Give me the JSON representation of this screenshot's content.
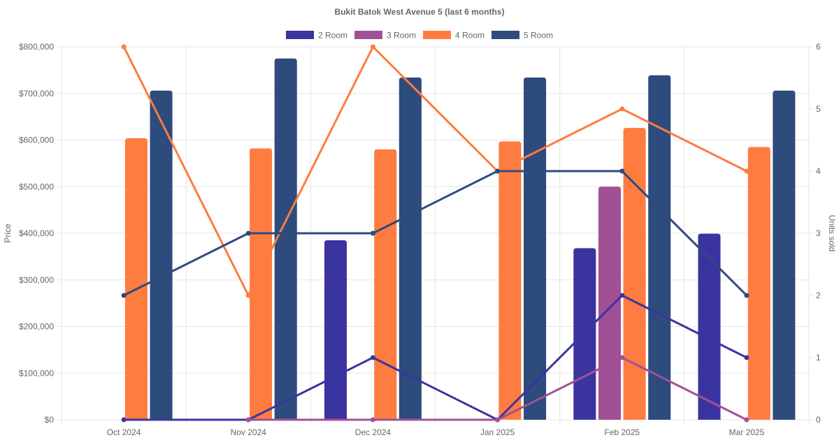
{
  "chart_data": {
    "type": "bar",
    "title": "Bukit Batok West Avenue 5 (last 6 months)",
    "categories": [
      "Oct 2024",
      "Nov 2024",
      "Dec 2024",
      "Jan 2025",
      "Feb 2025",
      "Mar 2025"
    ],
    "ylabel": "Price",
    "y2label": "Units sold",
    "ylim": [
      0,
      800000
    ],
    "y2lim": [
      0,
      6
    ],
    "yticks": [
      "$0",
      "$100,000",
      "$200,000",
      "$300,000",
      "$400,000",
      "$500,000",
      "$600,000",
      "$700,000",
      "$800,000"
    ],
    "y2ticks": [
      "0",
      "1",
      "2",
      "3",
      "4",
      "5",
      "6"
    ],
    "legend_position": "top-center",
    "grid": true,
    "series": [
      {
        "name": "2 Room",
        "color": "#3b34a0",
        "prices": [
          null,
          null,
          385000,
          null,
          368000,
          399000
        ],
        "units": [
          0,
          0,
          1,
          0,
          2,
          1
        ]
      },
      {
        "name": "3 Room",
        "color": "#a25096",
        "prices": [
          null,
          null,
          null,
          null,
          500000,
          null
        ],
        "units": [
          null,
          0,
          0,
          0,
          1,
          0
        ]
      },
      {
        "name": "4 Room",
        "color": "#ff7c40",
        "prices": [
          604000,
          582000,
          580000,
          597000,
          626000,
          585000
        ],
        "units": [
          6,
          2,
          6,
          4,
          5,
          4
        ]
      },
      {
        "name": "5 Room",
        "color": "#2d4b7d",
        "prices": [
          706000,
          775000,
          734000,
          734000,
          739000,
          706000
        ],
        "units": [
          2,
          3,
          3,
          4,
          4,
          2
        ]
      }
    ]
  }
}
